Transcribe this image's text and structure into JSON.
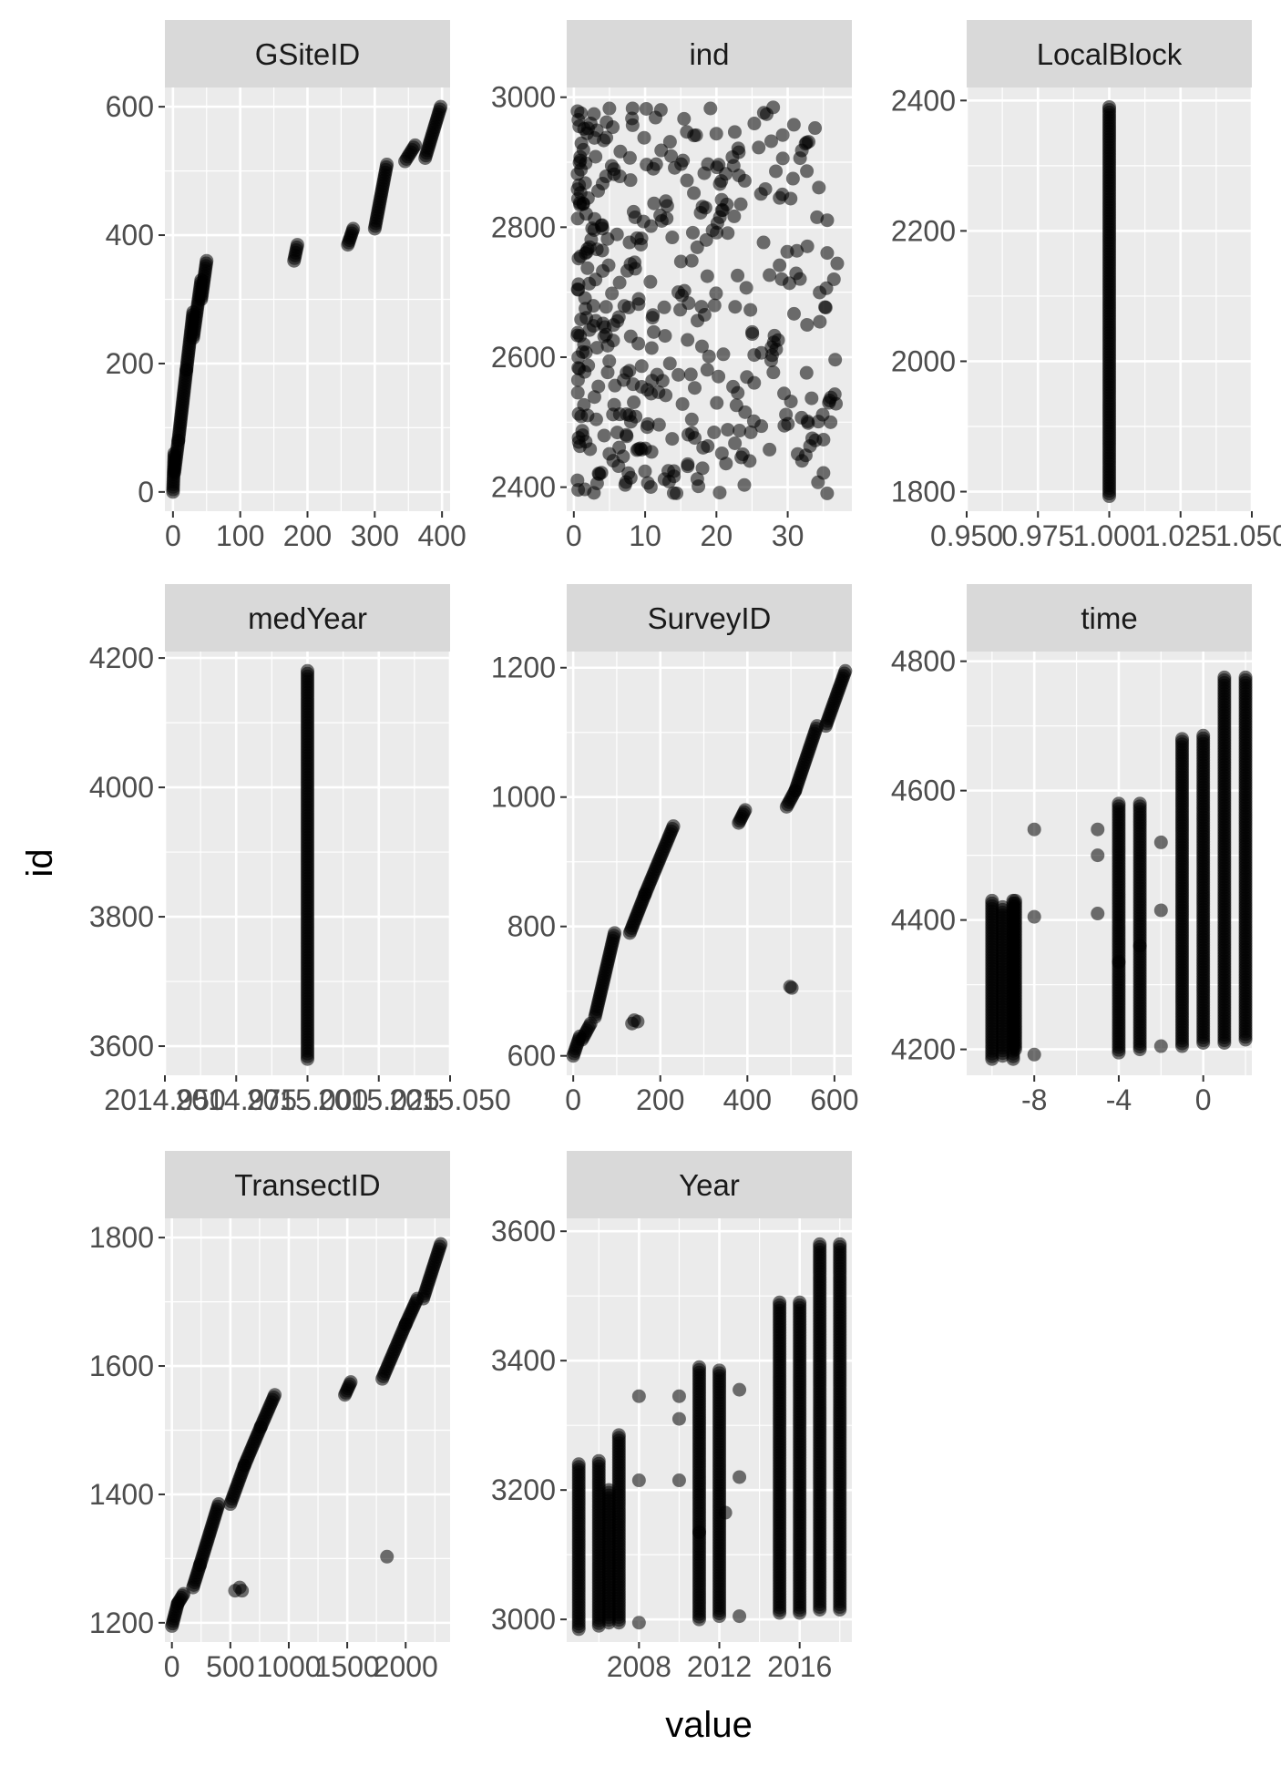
{
  "chart_data": {
    "type": "scatter",
    "xlabel": "value",
    "ylabel": "id",
    "grid": true,
    "point_color": "#000000",
    "panel_background": "#ebebeb",
    "strip_background": "#d9d9d9",
    "grid_color": "#ffffff",
    "point_alpha": 0.55,
    "facets": [
      {
        "strip": "GSiteID",
        "xlim": [
          -12,
          412
        ],
        "ylim": [
          -30,
          630
        ],
        "xticks": [
          0,
          100,
          200,
          300,
          400
        ],
        "xtick_labels": [
          "0",
          "100",
          "200",
          "300",
          "400"
        ],
        "yticks": [
          0,
          200,
          400,
          600
        ],
        "ytick_labels": [
          "0",
          "200",
          "400",
          "600"
        ],
        "segments": [
          {
            "x": [
              0,
              2
            ],
            "y": [
              0,
              60
            ]
          },
          {
            "x": [
              2,
              8
            ],
            "y": [
              30,
              80
            ]
          },
          {
            "x": [
              8,
              20
            ],
            "y": [
              80,
              190
            ]
          },
          {
            "x": [
              20,
              30
            ],
            "y": [
              190,
              280
            ]
          },
          {
            "x": [
              30,
              42
            ],
            "y": [
              240,
              330
            ]
          },
          {
            "x": [
              42,
              50
            ],
            "y": [
              300,
              360
            ]
          },
          {
            "x": [
              180,
              185
            ],
            "y": [
              360,
              385
            ]
          },
          {
            "x": [
              260,
              268
            ],
            "y": [
              385,
              410
            ]
          },
          {
            "x": [
              300,
              318
            ],
            "y": [
              410,
              510
            ]
          },
          {
            "x": [
              345,
              360
            ],
            "y": [
              515,
              540
            ]
          },
          {
            "x": [
              375,
              398
            ],
            "y": [
              520,
              600
            ]
          }
        ],
        "points": []
      },
      {
        "strip": "ind",
        "xlim": [
          -1,
          39
        ],
        "ylim": [
          2363,
          3015
        ],
        "xticks": [
          0,
          10,
          20,
          30
        ],
        "xtick_labels": [
          "0",
          "10",
          "20",
          "30"
        ],
        "yticks": [
          2400,
          2600,
          2800,
          3000
        ],
        "ytick_labels": [
          "2400",
          "2600",
          "2800",
          "3000"
        ],
        "segments": [],
        "scatter_random": {
          "n": 420,
          "seed": 7,
          "x": [
            0.5,
            37
          ],
          "y": [
            2390,
            2985
          ],
          "x_skew": 1.6
        }
      },
      {
        "strip": "LocalBlock",
        "xlim": [
          0.95,
          1.05
        ],
        "ylim": [
          1770,
          2420
        ],
        "xticks": [
          0.95,
          0.975,
          1.0,
          1.025,
          1.05
        ],
        "xtick_labels": [
          "0.950",
          "0.975",
          "1.000",
          "1.025",
          "1.050"
        ],
        "yticks": [
          1800,
          2000,
          2200,
          2400
        ],
        "ytick_labels": [
          "1800",
          "2000",
          "2200",
          "2400"
        ],
        "segments": [
          {
            "x": [
              1.0,
              1.0
            ],
            "y": [
              1793,
              2390
            ]
          }
        ],
        "points": []
      },
      {
        "strip": "medYear",
        "xlim": [
          2014.95,
          2015.05
        ],
        "ylim": [
          3555,
          4210
        ],
        "xticks": [
          2014.95,
          2014.975,
          2015.0,
          2015.025,
          2015.05
        ],
        "xtick_labels": [
          "2014.950",
          "2014.975",
          "2015.000",
          "2015.025",
          "2015.050"
        ],
        "yticks": [
          3600,
          3800,
          4000,
          4200
        ],
        "ytick_labels": [
          "3600",
          "3800",
          "4000",
          "4200"
        ],
        "segments": [
          {
            "x": [
              2015.0,
              2015.0
            ],
            "y": [
              3580,
              4180
            ]
          }
        ],
        "points": []
      },
      {
        "strip": "SurveyID",
        "xlim": [
          -15,
          640
        ],
        "ylim": [
          570,
          1225
        ],
        "xticks": [
          0,
          200,
          400,
          600
        ],
        "xtick_labels": [
          "0",
          "200",
          "400",
          "600"
        ],
        "yticks": [
          600,
          800,
          1000,
          1200
        ],
        "ytick_labels": [
          "600",
          "800",
          "1000",
          "1200"
        ],
        "segments": [
          {
            "x": [
              0,
              15
            ],
            "y": [
              600,
              630
            ]
          },
          {
            "x": [
              20,
              40
            ],
            "y": [
              625,
              650
            ]
          },
          {
            "x": [
              50,
              95
            ],
            "y": [
              660,
              790
            ]
          },
          {
            "x": [
              130,
              165
            ],
            "y": [
              790,
              850
            ]
          },
          {
            "x": [
              165,
              230
            ],
            "y": [
              850,
              955
            ]
          },
          {
            "x": [
              380,
              395
            ],
            "y": [
              960,
              980
            ]
          },
          {
            "x": [
              490,
              510
            ],
            "y": [
              985,
              1010
            ]
          },
          {
            "x": [
              510,
              560
            ],
            "y": [
              1010,
              1110
            ]
          },
          {
            "x": [
              580,
              625
            ],
            "y": [
              1110,
              1195
            ]
          }
        ],
        "points": [
          {
            "x": 135,
            "y": 650
          },
          {
            "x": 140,
            "y": 655
          },
          {
            "x": 148,
            "y": 653
          },
          {
            "x": 498,
            "y": 707
          },
          {
            "x": 502,
            "y": 705
          }
        ]
      },
      {
        "strip": "time",
        "xlim": [
          -11.2,
          2.3
        ],
        "ylim": [
          4160,
          4815
        ],
        "xticks": [
          -8,
          -4,
          0
        ],
        "xtick_labels": [
          "-8",
          "-4",
          "0"
        ],
        "yticks": [
          4200,
          4400,
          4600,
          4800
        ],
        "ytick_labels": [
          "4200",
          "4400",
          "4600",
          "4800"
        ],
        "segments": [
          {
            "x": [
              -10,
              -10
            ],
            "y": [
              4185,
              4430
            ]
          },
          {
            "x": [
              -9,
              -9
            ],
            "y": [
              4185,
              4430
            ]
          },
          {
            "x": [
              -8.9,
              -8.9
            ],
            "y": [
              4200,
              4430
            ]
          },
          {
            "x": [
              -9.5,
              -9.5
            ],
            "y": [
              4190,
              4420
            ]
          },
          {
            "x": [
              -4,
              -4
            ],
            "y": [
              4195,
              4580
            ]
          },
          {
            "x": [
              -3,
              -3
            ],
            "y": [
              4200,
              4580
            ]
          },
          {
            "x": [
              -1,
              -1
            ],
            "y": [
              4205,
              4680
            ]
          },
          {
            "x": [
              0,
              0
            ],
            "y": [
              4210,
              4685
            ]
          },
          {
            "x": [
              1,
              1
            ],
            "y": [
              4210,
              4775
            ]
          },
          {
            "x": [
              2,
              2
            ],
            "y": [
              4215,
              4775
            ]
          }
        ],
        "points": [
          {
            "x": -8,
            "y": 4540
          },
          {
            "x": -8,
            "y": 4405
          },
          {
            "x": -8,
            "y": 4192
          },
          {
            "x": -5,
            "y": 4540
          },
          {
            "x": -5,
            "y": 4500
          },
          {
            "x": -5,
            "y": 4410
          },
          {
            "x": -4,
            "y": 4335
          },
          {
            "x": -2,
            "y": 4415
          },
          {
            "x": -2,
            "y": 4520
          },
          {
            "x": -2,
            "y": 4205
          },
          {
            "x": -3,
            "y": 4360
          }
        ]
      },
      {
        "strip": "TransectID",
        "xlim": [
          -60,
          2380
        ],
        "ylim": [
          1170,
          1830
        ],
        "xticks": [
          0,
          500,
          1000,
          1500,
          2000
        ],
        "xtick_labels": [
          "0",
          "500",
          "1000",
          "1500",
          "2000"
        ],
        "yticks": [
          1200,
          1400,
          1600,
          1800
        ],
        "ytick_labels": [
          "1200",
          "1400",
          "1600",
          "1800"
        ],
        "segments": [
          {
            "x": [
              0,
              50
            ],
            "y": [
              1195,
              1230
            ]
          },
          {
            "x": [
              50,
              100
            ],
            "y": [
              1230,
              1245
            ]
          },
          {
            "x": [
              180,
              240
            ],
            "y": [
              1255,
              1290
            ]
          },
          {
            "x": [
              240,
              400
            ],
            "y": [
              1290,
              1385
            ]
          },
          {
            "x": [
              500,
              620
            ],
            "y": [
              1385,
              1445
            ]
          },
          {
            "x": [
              620,
              760
            ],
            "y": [
              1445,
              1505
            ]
          },
          {
            "x": [
              760,
              880
            ],
            "y": [
              1505,
              1555
            ]
          },
          {
            "x": [
              1480,
              1530
            ],
            "y": [
              1555,
              1575
            ]
          },
          {
            "x": [
              1800,
              2000
            ],
            "y": [
              1580,
              1665
            ]
          },
          {
            "x": [
              2000,
              2100
            ],
            "y": [
              1665,
              1705
            ]
          },
          {
            "x": [
              2150,
              2300
            ],
            "y": [
              1705,
              1790
            ]
          }
        ],
        "points": [
          {
            "x": 540,
            "y": 1250
          },
          {
            "x": 580,
            "y": 1255
          },
          {
            "x": 600,
            "y": 1250
          },
          {
            "x": 1840,
            "y": 1303
          }
        ]
      },
      {
        "strip": "Year",
        "xlim": [
          2004.4,
          2018.6
        ],
        "ylim": [
          2965,
          3620
        ],
        "xticks": [
          2008,
          2012,
          2016
        ],
        "xtick_labels": [
          "2008",
          "2012",
          "2016"
        ],
        "yticks": [
          3000,
          3200,
          3400,
          3600
        ],
        "ytick_labels": [
          "3000",
          "3200",
          "3400",
          "3600"
        ],
        "segments": [
          {
            "x": [
              2005,
              2005
            ],
            "y": [
              2985,
              3240
            ]
          },
          {
            "x": [
              2006,
              2006
            ],
            "y": [
              2990,
              3245
            ]
          },
          {
            "x": [
              2007,
              2007
            ],
            "y": [
              2995,
              3285
            ]
          },
          {
            "x": [
              2006.5,
              2006.5
            ],
            "y": [
              2995,
              3200
            ]
          },
          {
            "x": [
              2011,
              2011
            ],
            "y": [
              3000,
              3390
            ]
          },
          {
            "x": [
              2012,
              2012
            ],
            "y": [
              3005,
              3385
            ]
          },
          {
            "x": [
              2015,
              2015
            ],
            "y": [
              3010,
              3490
            ]
          },
          {
            "x": [
              2016,
              2016
            ],
            "y": [
              3010,
              3490
            ]
          },
          {
            "x": [
              2017,
              2017
            ],
            "y": [
              3015,
              3580
            ]
          },
          {
            "x": [
              2018,
              2018
            ],
            "y": [
              3015,
              3580
            ]
          }
        ],
        "points": [
          {
            "x": 2008,
            "y": 3345
          },
          {
            "x": 2008,
            "y": 3215
          },
          {
            "x": 2008,
            "y": 2995
          },
          {
            "x": 2010,
            "y": 3345
          },
          {
            "x": 2010,
            "y": 3310
          },
          {
            "x": 2010,
            "y": 3215
          },
          {
            "x": 2011,
            "y": 3135
          },
          {
            "x": 2013,
            "y": 3220
          },
          {
            "x": 2013,
            "y": 3355
          },
          {
            "x": 2013,
            "y": 3005
          },
          {
            "x": 2012.3,
            "y": 3165
          }
        ]
      }
    ]
  }
}
